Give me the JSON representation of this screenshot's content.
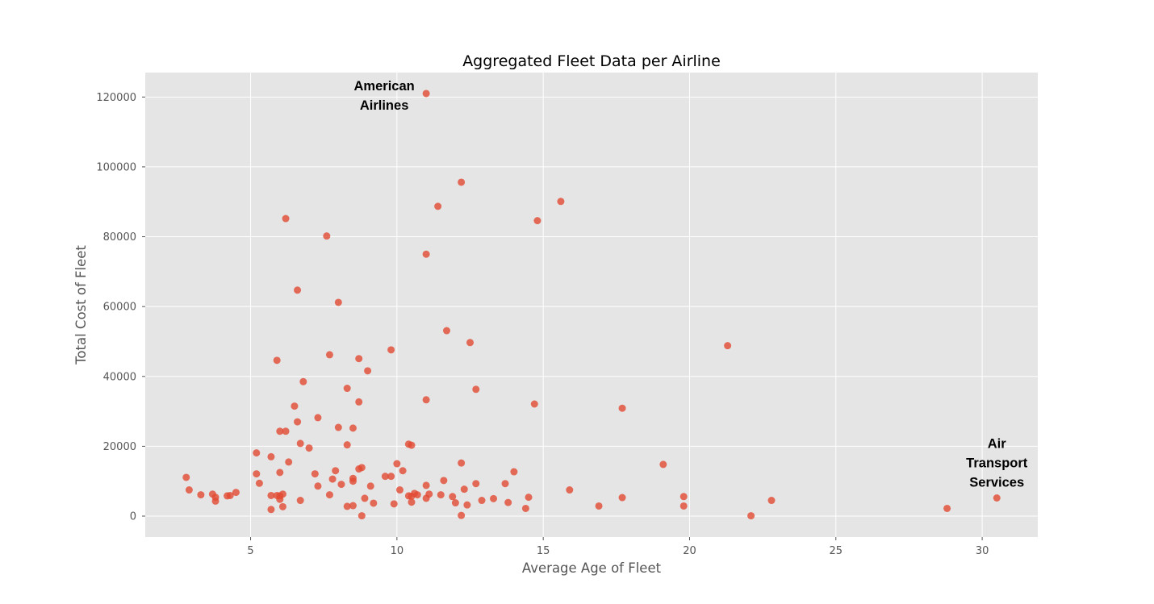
{
  "chart_data": {
    "type": "scatter",
    "title": "Aggregated Fleet Data per Airline",
    "xlabel": "Average Age of Fleet",
    "ylabel": "Total Cost of Fleet",
    "xlim": [
      1.4,
      31.9
    ],
    "ylim": [
      -6000,
      127000
    ],
    "x_ticks": [
      5,
      10,
      15,
      20,
      25,
      30
    ],
    "x_tick_labels": [
      "5",
      "10",
      "15",
      "20",
      "25",
      "30"
    ],
    "y_ticks": [
      0,
      20000,
      40000,
      60000,
      80000,
      100000,
      120000
    ],
    "y_tick_labels": [
      "0",
      "20000",
      "40000",
      "60000",
      "80000",
      "100000",
      "120000"
    ],
    "grid": true,
    "marker_color": "#e24a33",
    "marker_opacity": 0.8,
    "background_color": "#e5e5e5",
    "annotations": [
      {
        "lines": [
          "American",
          "Airlines"
        ],
        "x": 11.0,
        "y": 121000
      },
      {
        "lines": [
          "Air",
          "Transport",
          "Services"
        ],
        "x": 30.5,
        "y": 5200
      }
    ],
    "points": [
      [
        2.8,
        11100
      ],
      [
        2.9,
        7500
      ],
      [
        3.3,
        6100
      ],
      [
        3.7,
        6300
      ],
      [
        3.8,
        4300
      ],
      [
        3.8,
        5400
      ],
      [
        4.2,
        5800
      ],
      [
        4.3,
        5900
      ],
      [
        4.5,
        6800
      ],
      [
        5.2,
        18100
      ],
      [
        5.2,
        12100
      ],
      [
        5.3,
        9400
      ],
      [
        5.7,
        17000
      ],
      [
        5.7,
        5900
      ],
      [
        5.7,
        1900
      ],
      [
        5.9,
        44600
      ],
      [
        5.9,
        5900
      ],
      [
        6.0,
        24300
      ],
      [
        6.0,
        12500
      ],
      [
        6.0,
        5800
      ],
      [
        6.0,
        4800
      ],
      [
        6.1,
        2700
      ],
      [
        6.1,
        6300
      ],
      [
        6.2,
        85200
      ],
      [
        6.2,
        24300
      ],
      [
        6.3,
        15500
      ],
      [
        6.5,
        31500
      ],
      [
        6.6,
        27000
      ],
      [
        6.6,
        64700
      ],
      [
        6.7,
        20800
      ],
      [
        6.7,
        4500
      ],
      [
        6.8,
        38500
      ],
      [
        7.0,
        19500
      ],
      [
        7.2,
        12100
      ],
      [
        7.3,
        28200
      ],
      [
        7.3,
        8600
      ],
      [
        7.6,
        80200
      ],
      [
        7.7,
        46200
      ],
      [
        7.7,
        6100
      ],
      [
        7.8,
        10600
      ],
      [
        7.9,
        13000
      ],
      [
        8.0,
        61200
      ],
      [
        8.0,
        25400
      ],
      [
        8.1,
        9100
      ],
      [
        8.3,
        20400
      ],
      [
        8.3,
        2800
      ],
      [
        8.3,
        36600
      ],
      [
        8.5,
        25200
      ],
      [
        8.5,
        10800
      ],
      [
        8.5,
        10000
      ],
      [
        8.5,
        3000
      ],
      [
        8.7,
        45100
      ],
      [
        8.7,
        32700
      ],
      [
        8.7,
        13500
      ],
      [
        8.8,
        13900
      ],
      [
        8.8,
        100
      ],
      [
        8.9,
        5100
      ],
      [
        9.0,
        41600
      ],
      [
        9.1,
        8600
      ],
      [
        9.2,
        3700
      ],
      [
        9.6,
        11400
      ],
      [
        9.8,
        47600
      ],
      [
        9.8,
        11400
      ],
      [
        9.9,
        3500
      ],
      [
        10.0,
        15000
      ],
      [
        10.1,
        7500
      ],
      [
        10.2,
        13000
      ],
      [
        10.4,
        20600
      ],
      [
        10.4,
        5800
      ],
      [
        10.5,
        5700
      ],
      [
        10.5,
        20300
      ],
      [
        10.5,
        4000
      ],
      [
        10.6,
        6500
      ],
      [
        10.7,
        6100
      ],
      [
        11.0,
        121000
      ],
      [
        11.0,
        75000
      ],
      [
        11.0,
        33300
      ],
      [
        11.0,
        8800
      ],
      [
        11.0,
        5100
      ],
      [
        11.1,
        6300
      ],
      [
        11.4,
        88700
      ],
      [
        11.5,
        6100
      ],
      [
        11.6,
        10200
      ],
      [
        11.7,
        53100
      ],
      [
        11.9,
        5600
      ],
      [
        12.0,
        3800
      ],
      [
        12.2,
        95600
      ],
      [
        12.2,
        15200
      ],
      [
        12.2,
        200
      ],
      [
        12.3,
        7700
      ],
      [
        12.4,
        3200
      ],
      [
        12.5,
        49700
      ],
      [
        12.7,
        36300
      ],
      [
        12.7,
        9300
      ],
      [
        12.9,
        4500
      ],
      [
        13.3,
        5000
      ],
      [
        13.7,
        9300
      ],
      [
        13.8,
        3900
      ],
      [
        14.0,
        12700
      ],
      [
        14.4,
        2200
      ],
      [
        14.5,
        5400
      ],
      [
        14.7,
        32100
      ],
      [
        14.8,
        84600
      ],
      [
        15.6,
        90100
      ],
      [
        15.9,
        7500
      ],
      [
        16.9,
        2900
      ],
      [
        17.7,
        30900
      ],
      [
        17.7,
        5300
      ],
      [
        19.1,
        14800
      ],
      [
        19.8,
        5600
      ],
      [
        19.8,
        2900
      ],
      [
        21.3,
        48800
      ],
      [
        22.1,
        100
      ],
      [
        22.8,
        4500
      ],
      [
        28.8,
        2200
      ],
      [
        30.5,
        5200
      ]
    ]
  }
}
